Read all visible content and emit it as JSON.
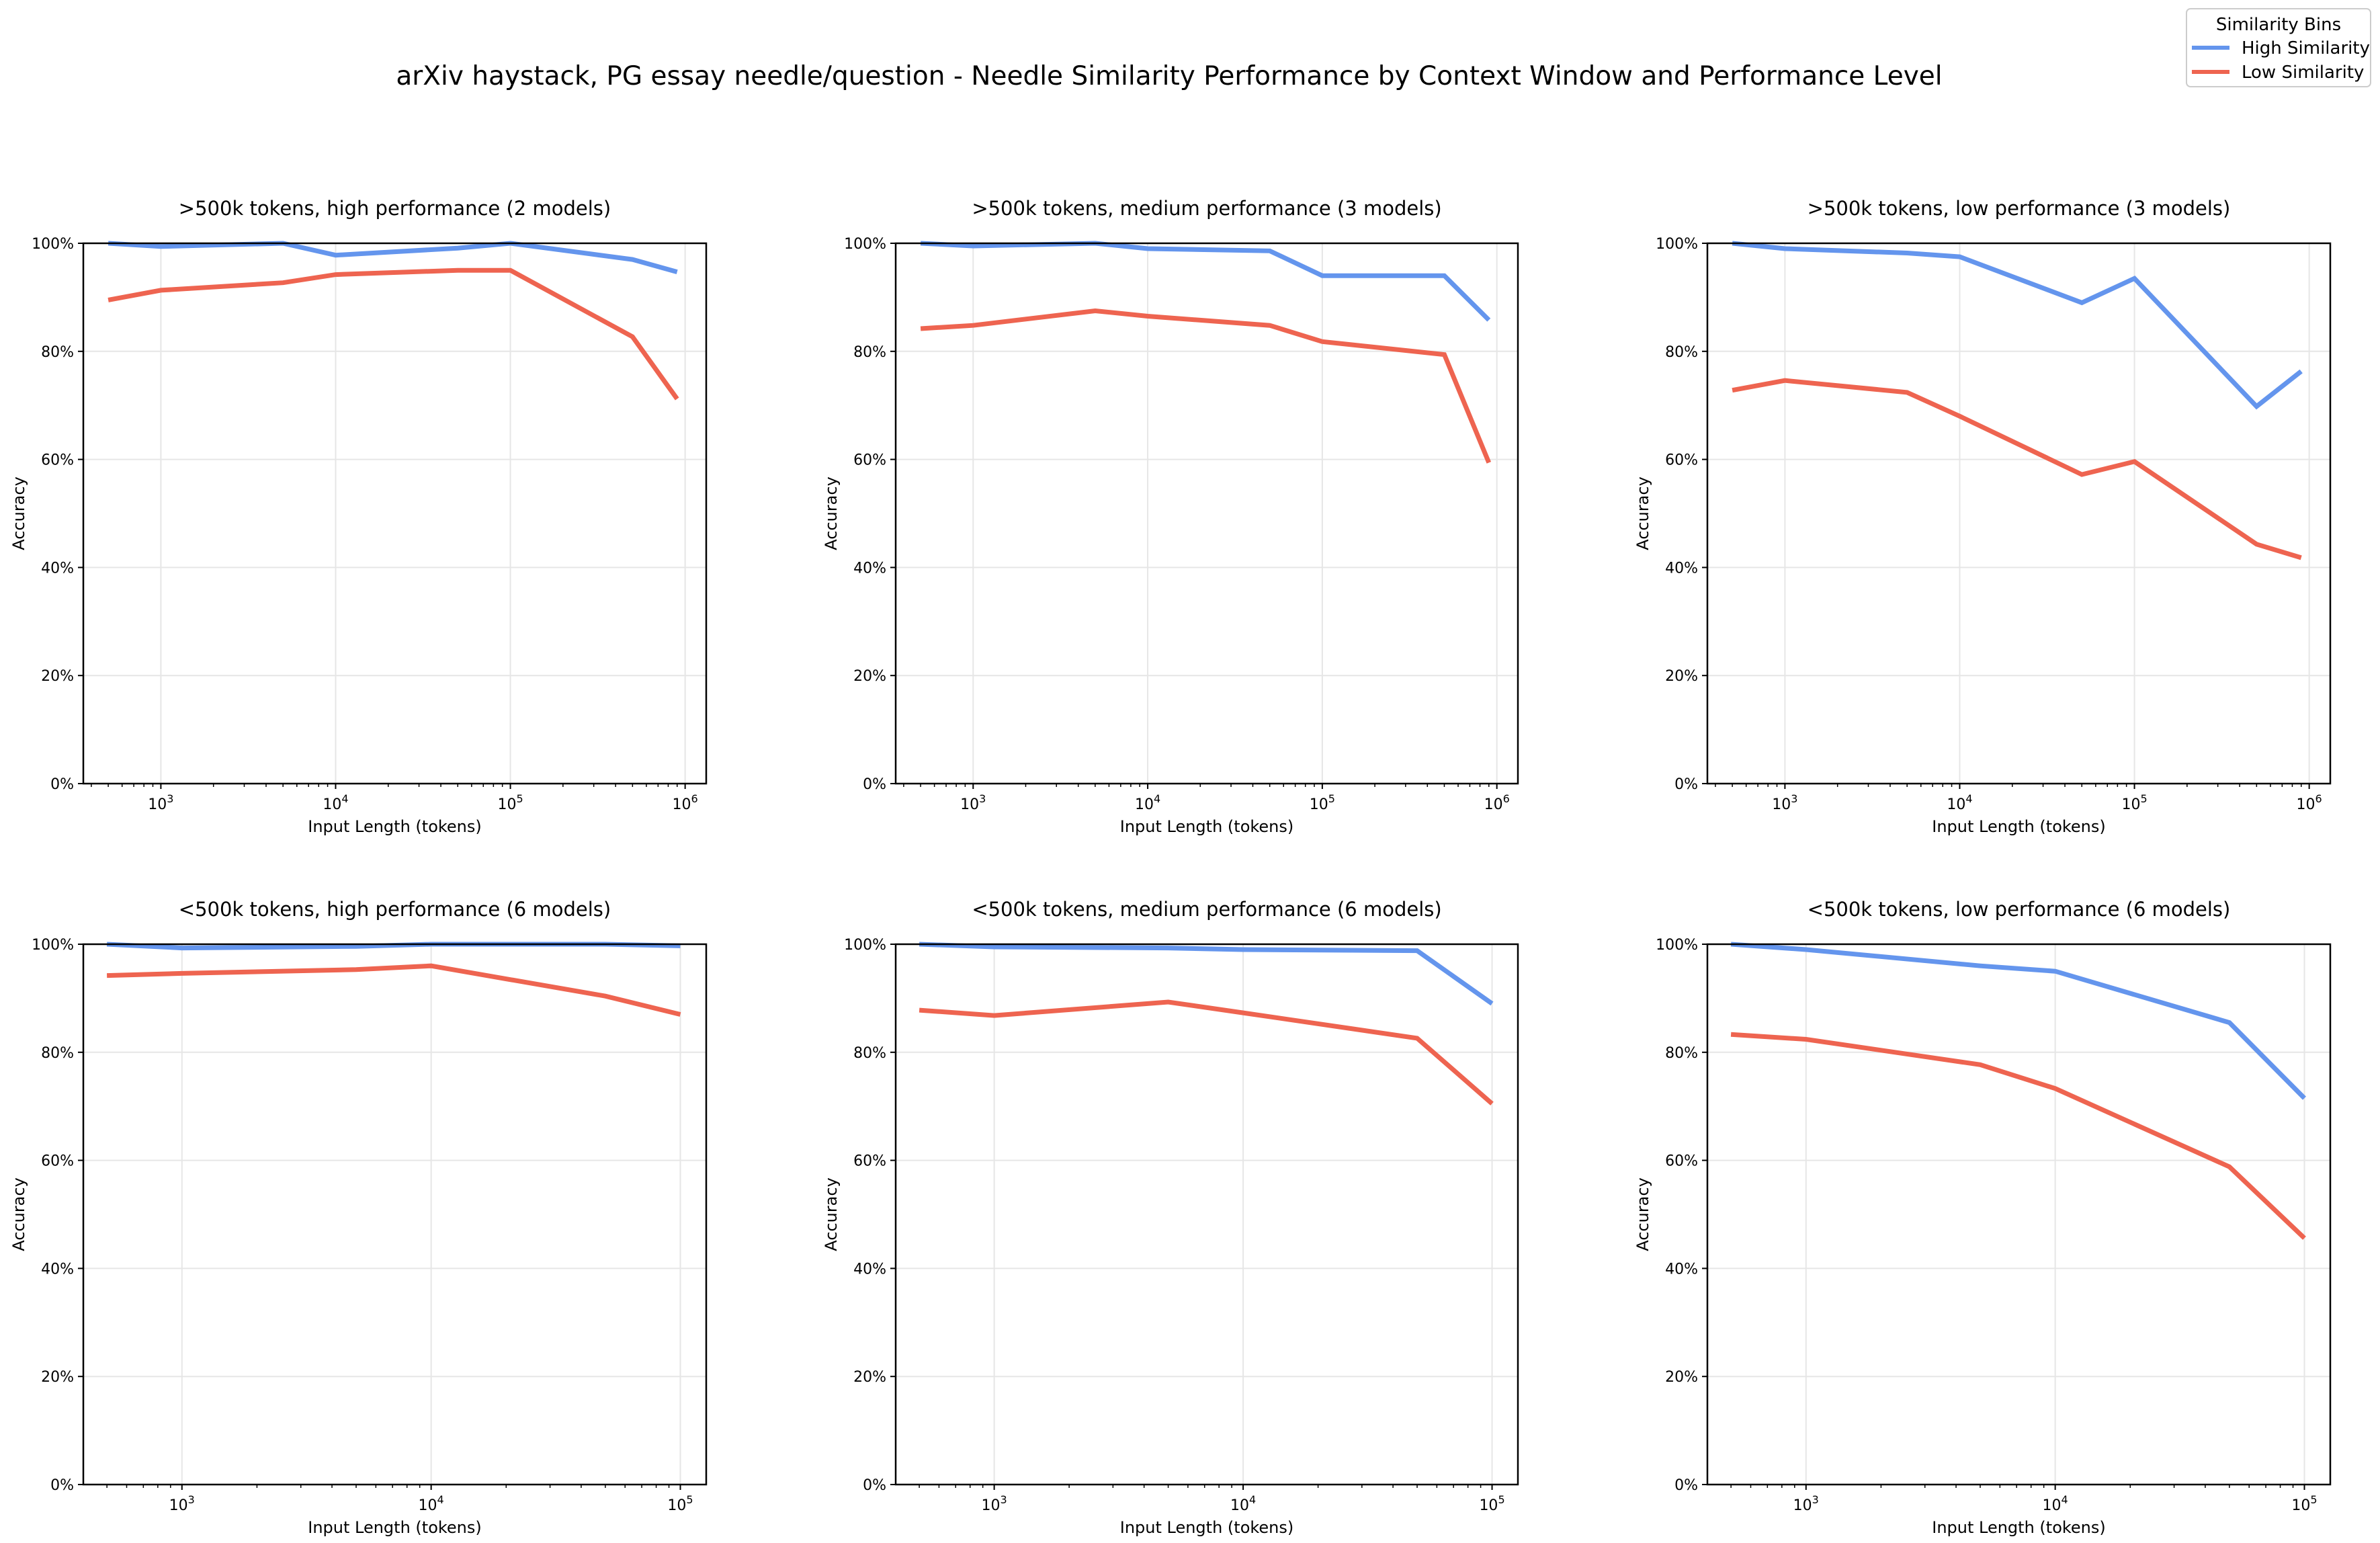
{
  "chart_data": {
    "title": "arXiv haystack, PG essay needle/question - Needle Similarity Performance by Context Window and Performance Level",
    "legend": {
      "title": "Similarity Bins",
      "placement": "top-right",
      "entries": [
        {
          "name": "High Similarity",
          "color": "#6495ED"
        },
        {
          "name": "Low Similarity",
          "color": "#EE6450"
        }
      ]
    },
    "panels": [
      {
        "type": "line",
        "title": ">500k tokens, high performance (2 models)",
        "xlabel": "Input Length (tokens)",
        "ylabel": "Accuracy",
        "xscale": "log",
        "xlim": [
          360,
          1320000
        ],
        "ylim": [
          0,
          100
        ],
        "x": [
          500,
          1000,
          5000,
          10000,
          50000,
          100000,
          500000,
          900000
        ],
        "series": [
          {
            "name": "High Similarity",
            "values": [
              100,
              99.4,
              100,
              97.8,
              99.1,
              100,
              97,
              94.7
            ]
          },
          {
            "name": "Low Similarity",
            "values": [
              89.5,
              91.3,
              92.7,
              94.2,
              95,
              95,
              82.7,
              71.2
            ]
          }
        ],
        "xticks": [
          {
            "v": 1000,
            "base": "10",
            "exp": "3"
          },
          {
            "v": 10000,
            "base": "10",
            "exp": "4"
          },
          {
            "v": 100000,
            "base": "10",
            "exp": "5"
          },
          {
            "v": 1000000,
            "base": "10",
            "exp": "6"
          }
        ]
      },
      {
        "type": "line",
        "title": ">500k tokens, medium performance (3 models)",
        "xlabel": "Input Length (tokens)",
        "ylabel": "Accuracy",
        "xscale": "log",
        "xlim": [
          360,
          1320000
        ],
        "ylim": [
          0,
          100
        ],
        "x": [
          500,
          1000,
          5000,
          10000,
          50000,
          100000,
          500000,
          900000
        ],
        "series": [
          {
            "name": "High Similarity",
            "values": [
              100,
              99.5,
              100,
              99,
              98.6,
              94,
              94,
              85.8
            ]
          },
          {
            "name": "Low Similarity",
            "values": [
              84.2,
              84.8,
              87.5,
              86.5,
              84.8,
              81.8,
              79.4,
              59.4
            ]
          }
        ],
        "xticks": [
          {
            "v": 1000,
            "base": "10",
            "exp": "3"
          },
          {
            "v": 10000,
            "base": "10",
            "exp": "4"
          },
          {
            "v": 100000,
            "base": "10",
            "exp": "5"
          },
          {
            "v": 1000000,
            "base": "10",
            "exp": "6"
          }
        ]
      },
      {
        "type": "line",
        "title": ">500k tokens, low performance (3 models)",
        "xlabel": "Input Length (tokens)",
        "ylabel": "Accuracy",
        "xscale": "log",
        "xlim": [
          360,
          1320000
        ],
        "ylim": [
          0,
          100
        ],
        "x": [
          500,
          1000,
          5000,
          10000,
          50000,
          100000,
          500000,
          900000
        ],
        "series": [
          {
            "name": "High Similarity",
            "values": [
              100,
              99,
              98.2,
              97.5,
              89,
              93.5,
              69.8,
              76.3
            ]
          },
          {
            "name": "Low Similarity",
            "values": [
              72.8,
              74.6,
              72.4,
              68,
              57.2,
              59.6,
              44.3,
              41.8
            ]
          }
        ],
        "xticks": [
          {
            "v": 1000,
            "base": "10",
            "exp": "3"
          },
          {
            "v": 10000,
            "base": "10",
            "exp": "4"
          },
          {
            "v": 100000,
            "base": "10",
            "exp": "5"
          },
          {
            "v": 1000000,
            "base": "10",
            "exp": "6"
          }
        ]
      },
      {
        "type": "line",
        "title": "<500k tokens, high performance (6 models)",
        "xlabel": "Input Length (tokens)",
        "ylabel": "Accuracy",
        "xscale": "log",
        "xlim": [
          402,
          127000
        ],
        "ylim": [
          0,
          100
        ],
        "x": [
          500,
          1000,
          5000,
          10000,
          50000,
          100000
        ],
        "series": [
          {
            "name": "High Similarity",
            "values": [
              100,
              99.3,
              99.6,
              100,
              100,
              99.7
            ]
          },
          {
            "name": "Low Similarity",
            "values": [
              94.2,
              94.6,
              95.3,
              96,
              90.4,
              87
            ]
          }
        ],
        "xticks": [
          {
            "v": 1000,
            "base": "10",
            "exp": "3"
          },
          {
            "v": 10000,
            "base": "10",
            "exp": "4"
          },
          {
            "v": 100000,
            "base": "10",
            "exp": "5"
          }
        ]
      },
      {
        "type": "line",
        "title": "<500k tokens, medium performance (6 models)",
        "xlabel": "Input Length (tokens)",
        "ylabel": "Accuracy",
        "xscale": "log",
        "xlim": [
          402,
          127000
        ],
        "ylim": [
          0,
          100
        ],
        "x": [
          500,
          1000,
          5000,
          10000,
          50000,
          100000
        ],
        "series": [
          {
            "name": "High Similarity",
            "values": [
              100,
              99.5,
              99.3,
              99,
              98.8,
              89
            ]
          },
          {
            "name": "Low Similarity",
            "values": [
              87.8,
              86.8,
              89.3,
              87.3,
              82.6,
              70.5
            ]
          }
        ],
        "xticks": [
          {
            "v": 1000,
            "base": "10",
            "exp": "3"
          },
          {
            "v": 10000,
            "base": "10",
            "exp": "4"
          },
          {
            "v": 100000,
            "base": "10",
            "exp": "5"
          }
        ]
      },
      {
        "type": "line",
        "title": "<500k tokens, low performance (6 models)",
        "xlabel": "Input Length (tokens)",
        "ylabel": "Accuracy",
        "xscale": "log",
        "xlim": [
          402,
          127000
        ],
        "ylim": [
          0,
          100
        ],
        "x": [
          500,
          1000,
          5000,
          10000,
          50000,
          100000
        ],
        "series": [
          {
            "name": "High Similarity",
            "values": [
              100,
              99,
              96,
              95,
              85.5,
              71.5
            ]
          },
          {
            "name": "Low Similarity",
            "values": [
              83.3,
              82.4,
              77.7,
              73.3,
              58.8,
              45.6
            ]
          }
        ],
        "xticks": [
          {
            "v": 1000,
            "base": "10",
            "exp": "3"
          },
          {
            "v": 10000,
            "base": "10",
            "exp": "4"
          },
          {
            "v": 100000,
            "base": "10",
            "exp": "5"
          }
        ]
      }
    ],
    "yticks": [
      {
        "v": 0,
        "label": "0%"
      },
      {
        "v": 20,
        "label": "20%"
      },
      {
        "v": 40,
        "label": "40%"
      },
      {
        "v": 60,
        "label": "60%"
      },
      {
        "v": 80,
        "label": "80%"
      },
      {
        "v": 100,
        "label": "100%"
      }
    ],
    "grid": true
  }
}
